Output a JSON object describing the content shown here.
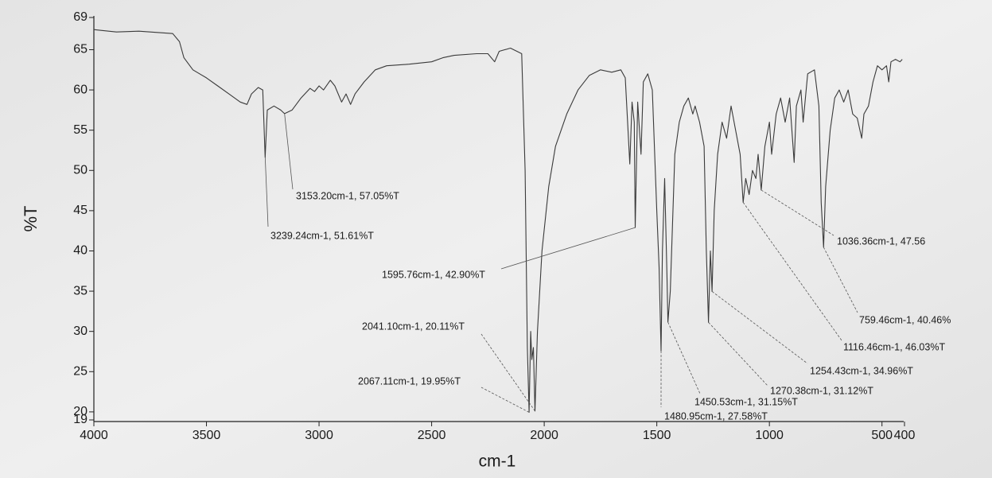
{
  "chart_data": {
    "type": "line",
    "xlabel": "cm-1",
    "ylabel": "%T",
    "xlim": [
      4000,
      400
    ],
    "ylim": [
      19,
      69
    ],
    "xticks": [
      4000,
      3500,
      3000,
      2500,
      2000,
      1500,
      1000,
      500,
      400
    ],
    "yticks": [
      19,
      20,
      25,
      30,
      35,
      40,
      45,
      50,
      55,
      60,
      65,
      69
    ],
    "color": "#3a3a3a",
    "x": [
      4000,
      3900,
      3800,
      3700,
      3650,
      3620,
      3600,
      3560,
      3500,
      3450,
      3400,
      3350,
      3320,
      3300,
      3270,
      3250,
      3239.24,
      3230,
      3200,
      3170,
      3153.2,
      3120,
      3080,
      3040,
      3020,
      3000,
      2980,
      2950,
      2930,
      2900,
      2880,
      2860,
      2840,
      2800,
      2750,
      2700,
      2600,
      2500,
      2450,
      2400,
      2300,
      2250,
      2220,
      2200,
      2150,
      2100,
      2085,
      2075,
      2067.11,
      2060,
      2055,
      2048,
      2041.1,
      2030,
      2010,
      1980,
      1950,
      1900,
      1850,
      1800,
      1750,
      1700,
      1660,
      1640,
      1620,
      1610,
      1600,
      1595.76,
      1585,
      1570,
      1560,
      1540,
      1520,
      1500,
      1490,
      1480.95,
      1475,
      1465,
      1455,
      1450.53,
      1440,
      1420,
      1400,
      1380,
      1360,
      1340,
      1330,
      1310,
      1290,
      1280,
      1270.38,
      1262,
      1254.43,
      1245,
      1230,
      1210,
      1190,
      1170,
      1150,
      1130,
      1116.46,
      1105,
      1090,
      1075,
      1060,
      1050,
      1036.36,
      1020,
      1000,
      990,
      970,
      950,
      930,
      910,
      890,
      880,
      860,
      850,
      830,
      800,
      780,
      770,
      759.46,
      750,
      730,
      710,
      690,
      670,
      650,
      630,
      610,
      590,
      580,
      560,
      540,
      520,
      500,
      480,
      470,
      460,
      440,
      420,
      410
    ],
    "values": [
      67.5,
      67.2,
      67.3,
      67.1,
      67.0,
      66.0,
      64.0,
      62.5,
      61.5,
      60.5,
      59.5,
      58.5,
      58.2,
      59.5,
      60.3,
      60.0,
      51.61,
      57.5,
      58.0,
      57.5,
      57.05,
      57.5,
      59.0,
      60.2,
      59.8,
      60.5,
      60.0,
      61.2,
      60.5,
      58.5,
      59.5,
      58.2,
      59.5,
      61.0,
      62.5,
      63.0,
      63.2,
      63.5,
      64.0,
      64.3,
      64.5,
      64.5,
      63.5,
      64.8,
      65.2,
      64.5,
      50,
      28,
      19.95,
      30,
      26.5,
      28,
      20.11,
      30,
      40,
      48,
      53,
      57,
      60,
      61.8,
      62.5,
      62.2,
      62.5,
      61.5,
      50.8,
      58.5,
      56,
      42.9,
      58.5,
      52,
      61,
      62,
      60,
      45,
      38,
      27.58,
      40,
      49,
      37,
      31.15,
      35,
      52,
      56,
      58,
      59,
      57,
      58,
      56,
      53,
      40,
      31.12,
      40,
      34.96,
      45,
      52,
      56,
      54,
      58,
      55,
      52,
      46.03,
      49,
      47,
      50,
      49,
      52,
      47.56,
      53,
      56,
      52,
      57,
      59,
      56,
      59,
      51,
      58,
      60,
      56,
      62,
      62.5,
      58,
      46,
      40.46,
      48,
      55,
      59,
      60,
      58.5,
      60,
      57,
      56.5,
      54,
      57,
      58,
      61,
      63,
      62.5,
      63,
      61,
      63.5,
      63.8,
      63.5,
      63.8
    ],
    "annotations": [
      {
        "x": 3239.24,
        "y": 51.61,
        "label": "3239.24cm-1, 51.61%T"
      },
      {
        "x": 3153.2,
        "y": 57.05,
        "label": "3153.20cm-1, 57.05%T"
      },
      {
        "x": 1595.76,
        "y": 42.9,
        "label": "1595.76cm-1, 42.90%T"
      },
      {
        "x": 2041.1,
        "y": 20.11,
        "label": "2041.10cm-1, 20.11%T"
      },
      {
        "x": 2067.11,
        "y": 19.95,
        "label": "2067.11cm-1, 19.95%T"
      },
      {
        "x": 1480.95,
        "y": 27.58,
        "label": "1480.95cm-1, 27.58%T"
      },
      {
        "x": 1450.53,
        "y": 31.15,
        "label": "1450.53cm-1, 31.15%T"
      },
      {
        "x": 1270.38,
        "y": 31.12,
        "label": "1270.38cm-1, 31.12%T"
      },
      {
        "x": 1254.43,
        "y": 34.96,
        "label": "1254.43cm-1, 34.96%T"
      },
      {
        "x": 1116.46,
        "y": 46.03,
        "label": "1116.46cm-1, 46.03%T"
      },
      {
        "x": 759.46,
        "y": 40.46,
        "label": "759.46cm-1, 40.46%"
      },
      {
        "x": 1036.36,
        "y": 47.56,
        "label": "1036.36cm-1, 47.56"
      }
    ]
  }
}
